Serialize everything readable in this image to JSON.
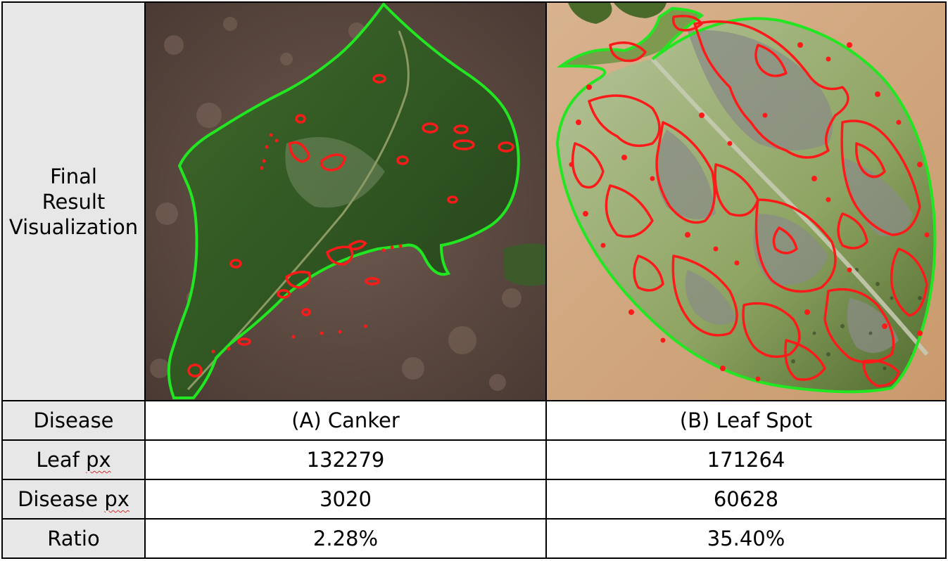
{
  "figure": {
    "row_header": {
      "visualization": [
        "Final",
        "Result",
        "Visualization"
      ],
      "disease": "Disease",
      "leaf_px": "Leaf",
      "leaf_px_unit": "px",
      "disease_px": "Disease",
      "disease_px_unit": "px",
      "ratio": "Ratio"
    },
    "columns": [
      {
        "disease": "(A) Canker",
        "leaf_px": "132279",
        "disease_px": "3020",
        "ratio": "2.28%"
      },
      {
        "disease": "(B) Leaf Spot",
        "leaf_px": "171264",
        "disease_px": "60628",
        "ratio": "35.40%"
      }
    ],
    "colors": {
      "leaf_contour": "#22e622",
      "disease_contour": "#ff1a1a",
      "header_bg": "#e7e7e7",
      "border": "#000000"
    }
  }
}
